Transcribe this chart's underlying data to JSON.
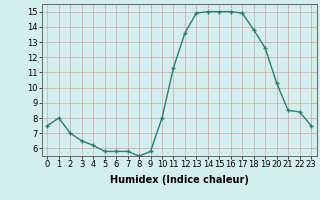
{
  "x": [
    0,
    1,
    2,
    3,
    4,
    5,
    6,
    7,
    8,
    9,
    10,
    11,
    12,
    13,
    14,
    15,
    16,
    17,
    18,
    19,
    20,
    21,
    22,
    23
  ],
  "y": [
    7.5,
    8.0,
    7.0,
    6.5,
    6.2,
    5.8,
    5.8,
    5.8,
    5.5,
    5.8,
    8.0,
    11.3,
    13.6,
    14.9,
    15.0,
    15.0,
    15.0,
    14.9,
    13.8,
    12.6,
    10.3,
    8.5,
    8.4,
    7.5
  ],
  "xlabel": "Humidex (Indice chaleur)",
  "ylim": [
    5.5,
    15.5
  ],
  "xlim": [
    -0.5,
    23.5
  ],
  "yticks": [
    6,
    7,
    8,
    9,
    10,
    11,
    12,
    13,
    14,
    15
  ],
  "xticks": [
    0,
    1,
    2,
    3,
    4,
    5,
    6,
    7,
    8,
    9,
    10,
    11,
    12,
    13,
    14,
    15,
    16,
    17,
    18,
    19,
    20,
    21,
    22,
    23
  ],
  "xtick_labels": [
    "0",
    "1",
    "2",
    "3",
    "4",
    "5",
    "6",
    "7",
    "8",
    "9",
    "10",
    "11",
    "12",
    "13",
    "14",
    "15",
    "16",
    "17",
    "18",
    "19",
    "20",
    "21",
    "22",
    "23"
  ],
  "line_color": "#2e7d6e",
  "marker_color": "#2e7d6e",
  "bg_color": "#d4eeed",
  "grid_color": "#c8a8a8",
  "label_color": "#000000",
  "line_width": 1.0,
  "marker_size": 2.5,
  "tick_fontsize": 6.0,
  "xlabel_fontsize": 7.0
}
